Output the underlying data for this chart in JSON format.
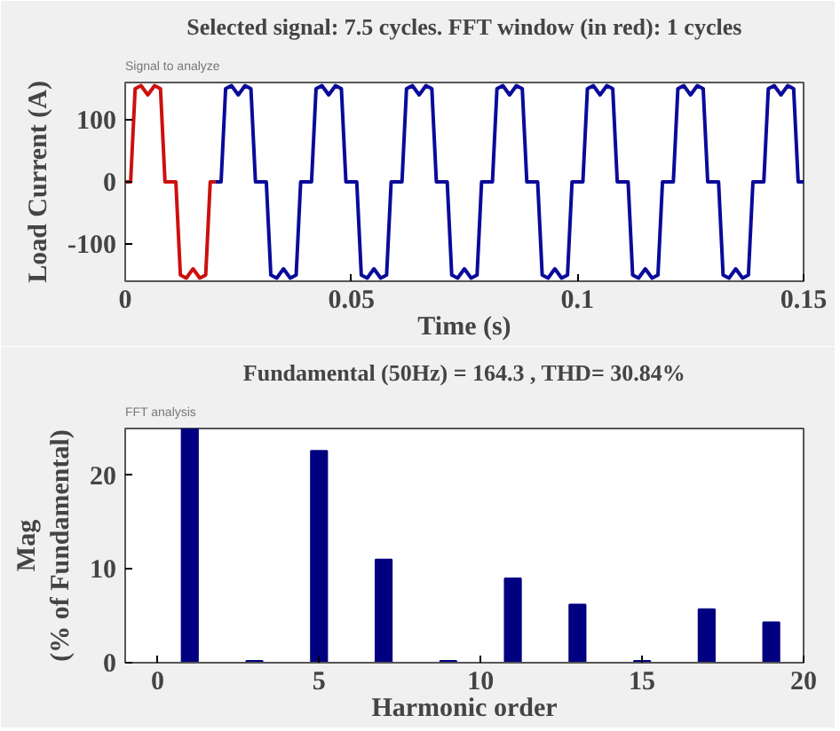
{
  "chart_data": [
    {
      "type": "line",
      "title": "Selected signal: 7.5 cycles. FFT window (in red): 1 cycles",
      "xlabel": "Time (s)",
      "ylabel": "Load Current (A)",
      "annotations": [
        "Signal to analyze"
      ],
      "xlim": [
        0,
        0.15
      ],
      "ylim": [
        -160,
        160
      ],
      "xticks": [
        0,
        0.05,
        0.1,
        0.15
      ],
      "yticks": [
        -100,
        0,
        100
      ],
      "grid": false,
      "series": [
        {
          "color": "#cc1010",
          "x": [
            0,
            0.0012,
            0.0022,
            0.0035,
            0.005,
            0.0065,
            0.0078,
            0.0088,
            0.0112,
            0.0122,
            0.0135,
            0.015,
            0.0165,
            0.0178,
            0.0188,
            0.02
          ],
          "values": [
            0,
            0,
            150,
            155,
            140,
            155,
            150,
            0,
            0,
            -150,
            -155,
            -140,
            -155,
            -150,
            0,
            0
          ]
        },
        {
          "color": "#0a0a9a",
          "x": [
            0.02,
            0.0212,
            0.0222,
            0.0235,
            0.025,
            0.0265,
            0.0278,
            0.0288,
            0.0312,
            0.0322,
            0.0335,
            0.035,
            0.0365,
            0.0378,
            0.0388,
            0.04,
            0.0412,
            0.0422,
            0.0435,
            0.045,
            0.0465,
            0.0478,
            0.0488,
            0.0512,
            0.0522,
            0.0535,
            0.055,
            0.0565,
            0.0578,
            0.0588,
            0.06,
            0.0612,
            0.0622,
            0.0635,
            0.065,
            0.0665,
            0.0678,
            0.0688,
            0.0712,
            0.0722,
            0.0735,
            0.075,
            0.0765,
            0.0778,
            0.0788,
            0.08,
            0.0812,
            0.0822,
            0.0835,
            0.085,
            0.0865,
            0.0878,
            0.0888,
            0.0912,
            0.0922,
            0.0935,
            0.095,
            0.0965,
            0.0978,
            0.0988,
            0.1,
            0.1012,
            0.1022,
            0.1035,
            0.105,
            0.1065,
            0.1078,
            0.1088,
            0.1112,
            0.1122,
            0.1135,
            0.115,
            0.1165,
            0.1178,
            0.1188,
            0.12,
            0.1212,
            0.1222,
            0.1235,
            0.125,
            0.1265,
            0.1278,
            0.1288,
            0.1312,
            0.1322,
            0.1335,
            0.135,
            0.1365,
            0.1378,
            0.1388,
            0.14,
            0.1412,
            0.1422,
            0.1435,
            0.145,
            0.1465,
            0.1478,
            0.1488,
            0.15
          ],
          "values": [
            0,
            0,
            150,
            155,
            140,
            155,
            150,
            0,
            0,
            -150,
            -155,
            -140,
            -155,
            -150,
            0,
            0,
            0,
            150,
            155,
            140,
            155,
            150,
            0,
            0,
            -150,
            -155,
            -140,
            -155,
            -150,
            0,
            0,
            0,
            150,
            155,
            140,
            155,
            150,
            0,
            0,
            -150,
            -155,
            -140,
            -155,
            -150,
            0,
            0,
            0,
            150,
            155,
            140,
            155,
            150,
            0,
            0,
            -150,
            -155,
            -140,
            -155,
            -150,
            0,
            0,
            0,
            150,
            155,
            140,
            155,
            150,
            0,
            0,
            -150,
            -155,
            -140,
            -155,
            -150,
            0,
            0,
            0,
            150,
            155,
            140,
            155,
            150,
            0,
            0,
            -150,
            -155,
            -140,
            -155,
            -150,
            0,
            0,
            0,
            150,
            155,
            140,
            155,
            150,
            0,
            0
          ]
        }
      ]
    },
    {
      "type": "bar",
      "title": "Fundamental (50Hz) = 164.3 , THD= 30.84%",
      "xlabel": "Harmonic order",
      "ylabel": "Mag\n(% of Fundamental)",
      "annotations": [
        "FFT analysis"
      ],
      "xlim": [
        -1,
        20
      ],
      "ylim": [
        0,
        25
      ],
      "xticks": [
        0,
        5,
        10,
        15,
        20
      ],
      "yticks": [
        0,
        10,
        20
      ],
      "grid": false,
      "color": "#000080",
      "x": [
        1,
        3,
        5,
        7,
        9,
        11,
        13,
        15,
        17,
        19
      ],
      "values": [
        25,
        0.2,
        22.6,
        11,
        0.2,
        9,
        6.2,
        0.2,
        5.7,
        4.3
      ]
    }
  ]
}
